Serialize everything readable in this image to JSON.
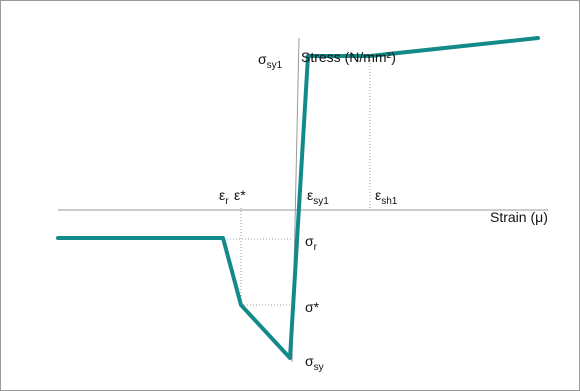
{
  "diagram": {
    "y_axis_label": "Stress (N/mm²)",
    "x_axis_label": "Strain (μ)",
    "labels": {
      "sigma_sy1": {
        "sym": "σ",
        "sub": "sy1"
      },
      "epsilon_r": {
        "sym": "ε",
        "sub": "r"
      },
      "epsilon_star": "ε*",
      "epsilon_sy1": {
        "sym": "ε",
        "sub": "sy1"
      },
      "epsilon_sh1": {
        "sym": "ε",
        "sub": "sh1"
      },
      "sigma_r": {
        "sym": "σ",
        "sub": "r"
      },
      "sigma_star": "σ*",
      "sigma_sy": {
        "sym": "σ",
        "sub": "sy"
      }
    },
    "curve_color": "#138a8a",
    "axis_color": "#9a9a9a",
    "guide_color": "#9a9a9a"
  }
}
